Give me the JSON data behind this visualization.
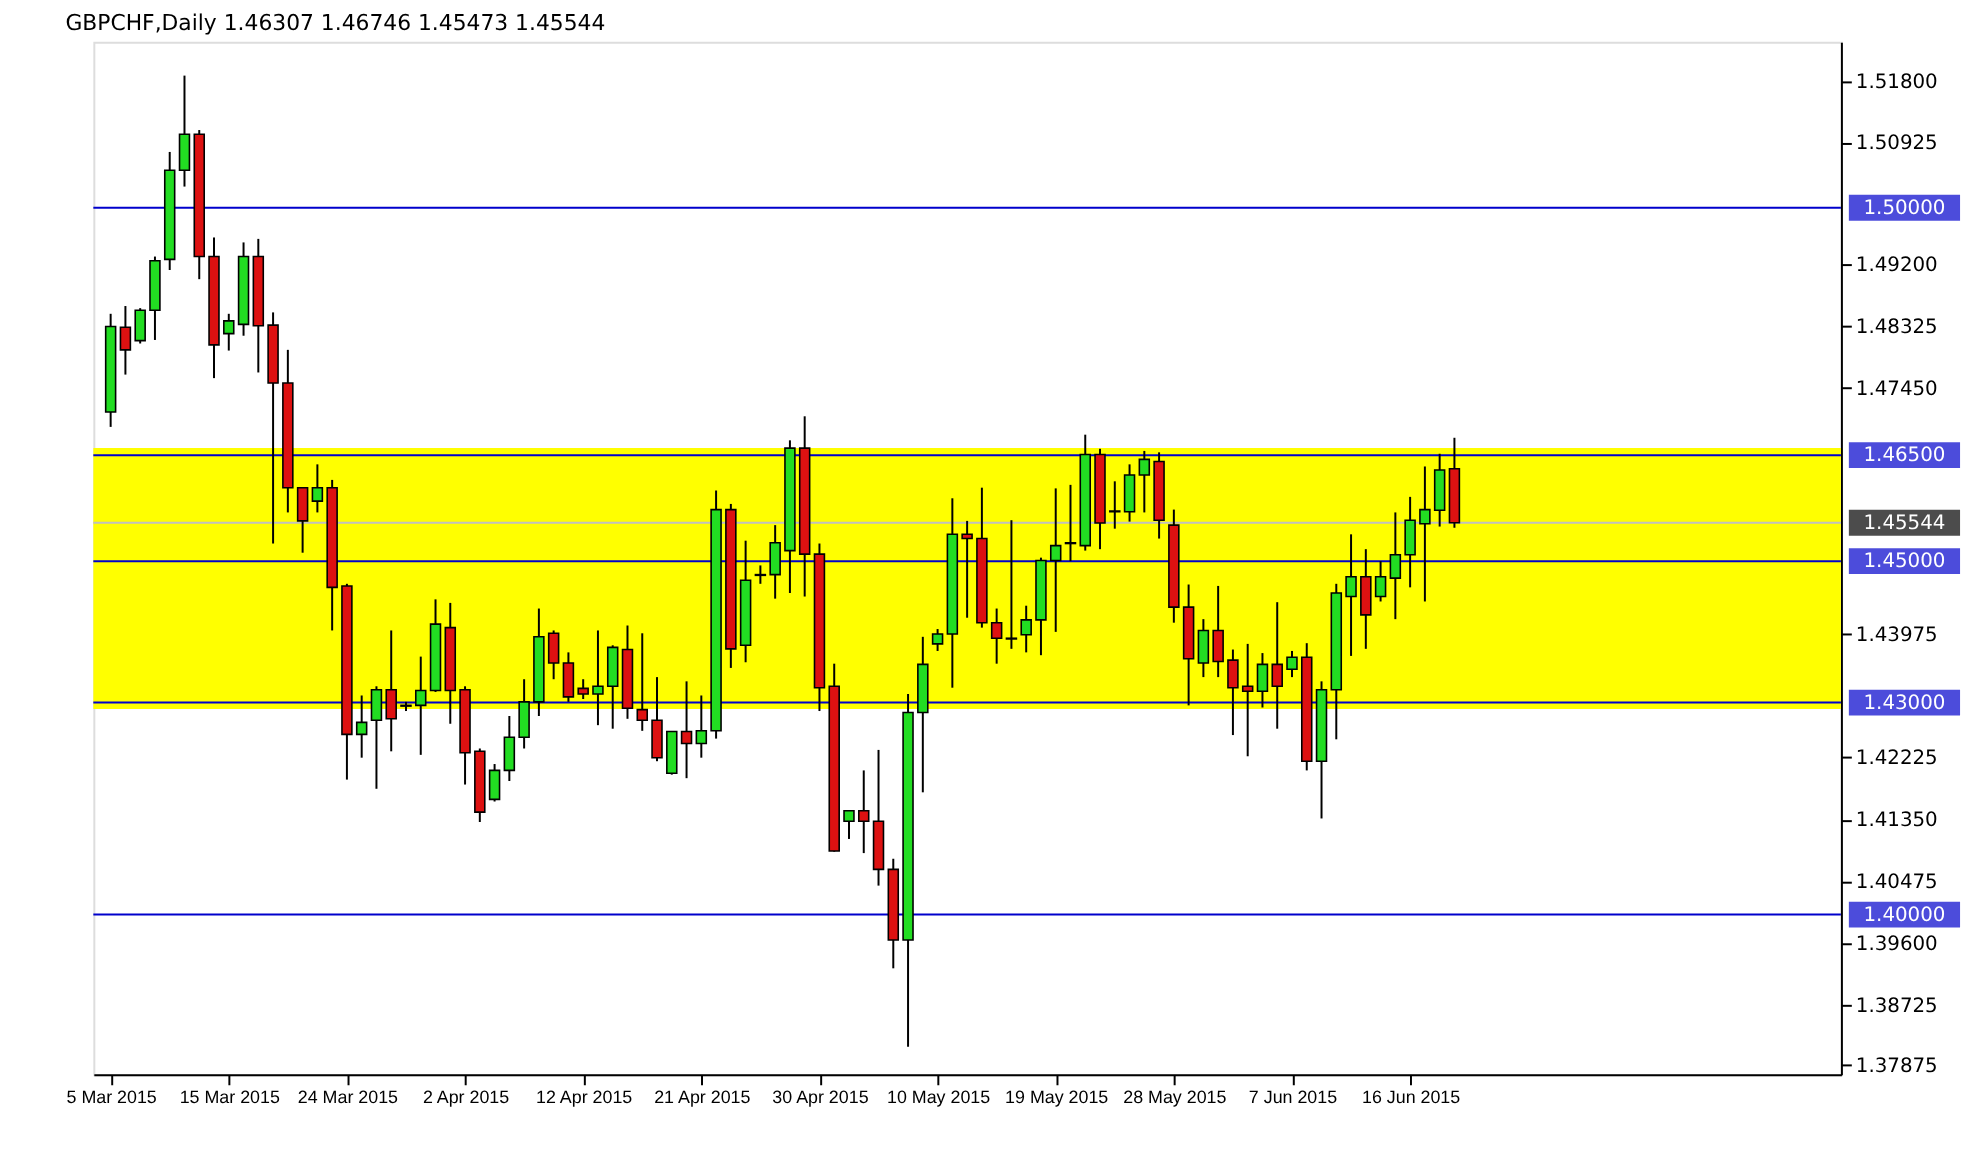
{
  "chart_data": {
    "type": "candlestick",
    "title": "GBPCHF,Daily  1.46307 1.46746 1.45473 1.45544",
    "categories": [
      "5 Mar 2015",
      null,
      null,
      null,
      null,
      null,
      null,
      null,
      "15 Mar 2015",
      null,
      null,
      null,
      null,
      null,
      null,
      null,
      "24 Mar 2015",
      null,
      null,
      null,
      null,
      null,
      null,
      null,
      "2 Apr 2015",
      null,
      null,
      null,
      null,
      null,
      null,
      null,
      "12 Apr 2015",
      null,
      null,
      null,
      null,
      null,
      null,
      null,
      "21 Apr 2015",
      null,
      null,
      null,
      null,
      null,
      null,
      null,
      "30 Apr 2015",
      null,
      null,
      null,
      null,
      null,
      null,
      null,
      "10 May 2015",
      null,
      null,
      null,
      null,
      null,
      null,
      null,
      "19 May 2015",
      null,
      null,
      null,
      null,
      null,
      null,
      null,
      "28 May 2015",
      null,
      null,
      null,
      null,
      null,
      null,
      null,
      "7 Jun 2015",
      null,
      null,
      null,
      null,
      null,
      null,
      null,
      "16 Jun 2015",
      null,
      null,
      null,
      null,
      null,
      null,
      null,
      null,
      null,
      null,
      null,
      null,
      null,
      null,
      null,
      null,
      null,
      null,
      null,
      null,
      null,
      null,
      null,
      null,
      null,
      null,
      null,
      null
    ],
    "ohlc": [
      [
        1.4711,
        1.485,
        1.469,
        1.4832
      ],
      [
        1.4831,
        1.4861,
        1.4764,
        1.4799
      ],
      [
        1.4812,
        1.4858,
        1.4808,
        1.4855
      ],
      [
        1.4855,
        1.4931,
        1.4813,
        1.4925
      ],
      [
        1.4927,
        1.5079,
        1.4912,
        1.5053
      ],
      [
        1.5053,
        1.5187,
        1.503,
        1.5104
      ],
      [
        1.5104,
        1.511,
        1.4899,
        1.4931
      ],
      [
        1.4931,
        1.4958,
        1.4759,
        1.4806
      ],
      [
        1.4822,
        1.485,
        1.4798,
        1.484
      ],
      [
        1.4835,
        1.4951,
        1.4819,
        1.4931
      ],
      [
        1.4931,
        1.4956,
        1.4767,
        1.4833
      ],
      [
        1.4834,
        1.4852,
        1.4525,
        1.4752
      ],
      [
        1.4752,
        1.4799,
        1.4569,
        1.4604
      ],
      [
        1.4604,
        1.4604,
        1.4512,
        1.4557
      ],
      [
        1.4585,
        1.4637,
        1.4569,
        1.4604
      ],
      [
        1.4604,
        1.4615,
        1.4402,
        1.4463
      ],
      [
        1.4465,
        1.4468,
        1.4191,
        1.4255
      ],
      [
        1.4255,
        1.431,
        1.4222,
        1.4272
      ],
      [
        1.4275,
        1.4323,
        1.4178,
        1.4318
      ],
      [
        1.4318,
        1.4402,
        1.4231,
        1.4277
      ],
      [
        1.4295,
        1.4301,
        1.4288,
        1.4296
      ],
      [
        1.4296,
        1.4365,
        1.4226,
        1.4317
      ],
      [
        1.4317,
        1.4446,
        1.4315,
        1.4411
      ],
      [
        1.4406,
        1.4441,
        1.427,
        1.4317
      ],
      [
        1.4318,
        1.4323,
        1.4184,
        1.4229
      ],
      [
        1.4231,
        1.4235,
        1.4131,
        1.4145
      ],
      [
        1.4163,
        1.4213,
        1.416,
        1.4204
      ],
      [
        1.4204,
        1.4281,
        1.4189,
        1.4251
      ],
      [
        1.4251,
        1.4333,
        1.4235,
        1.4301
      ],
      [
        1.4301,
        1.4433,
        1.4281,
        1.4393
      ],
      [
        1.4398,
        1.4402,
        1.4333,
        1.4356
      ],
      [
        1.4356,
        1.4371,
        1.4301,
        1.4308
      ],
      [
        1.432,
        1.4333,
        1.4305,
        1.4312
      ],
      [
        1.4312,
        1.4402,
        1.4268,
        1.4323
      ],
      [
        1.4323,
        1.4381,
        1.4263,
        1.4378
      ],
      [
        1.4375,
        1.4409,
        1.4277,
        1.4292
      ],
      [
        1.429,
        1.4398,
        1.426,
        1.4275
      ],
      [
        1.4275,
        1.4336,
        1.4217,
        1.4222
      ],
      [
        1.42,
        1.4259,
        1.4198,
        1.4259
      ],
      [
        1.4259,
        1.433,
        1.4193,
        1.4242
      ],
      [
        1.4242,
        1.431,
        1.4222,
        1.426
      ],
      [
        1.426,
        1.46,
        1.4249,
        1.4573
      ],
      [
        1.4573,
        1.4581,
        1.4349,
        1.4376
      ],
      [
        1.4381,
        1.4529,
        1.4357,
        1.4473
      ],
      [
        1.4481,
        1.4494,
        1.4468,
        1.448
      ],
      [
        1.4481,
        1.4551,
        1.4447,
        1.4526
      ],
      [
        1.4515,
        1.4671,
        1.4455,
        1.466
      ],
      [
        1.466,
        1.4705,
        1.445,
        1.451
      ],
      [
        1.451,
        1.4525,
        1.4288,
        1.4321
      ],
      [
        1.4323,
        1.4355,
        1.4089,
        1.409
      ],
      [
        1.4132,
        1.4147,
        1.4107,
        1.4147
      ],
      [
        1.4147,
        1.4204,
        1.4087,
        1.4132
      ],
      [
        1.4132,
        1.4233,
        1.4041,
        1.4064
      ],
      [
        1.4064,
        1.4079,
        1.3924,
        1.3964
      ],
      [
        1.3964,
        1.4312,
        1.3813,
        1.4286
      ],
      [
        1.4286,
        1.4393,
        1.4173,
        1.4354
      ],
      [
        1.4383,
        1.4404,
        1.4373,
        1.4397
      ],
      [
        1.4397,
        1.4589,
        1.4321,
        1.4538
      ],
      [
        1.4538,
        1.4557,
        1.442,
        1.4532
      ],
      [
        1.4532,
        1.4604,
        1.4406,
        1.4413
      ],
      [
        1.4413,
        1.4433,
        1.4355,
        1.4391
      ],
      [
        1.4391,
        1.4558,
        1.4376,
        1.439
      ],
      [
        1.4396,
        1.4437,
        1.4371,
        1.4417
      ],
      [
        1.4417,
        1.4505,
        1.4367,
        1.4501
      ],
      [
        1.4501,
        1.4603,
        1.44,
        1.4522
      ],
      [
        1.4525,
        1.4608,
        1.45,
        1.4526
      ],
      [
        1.4522,
        1.4679,
        1.4515,
        1.4651
      ],
      [
        1.4651,
        1.4659,
        1.4517,
        1.4554
      ],
      [
        1.457,
        1.4613,
        1.4546,
        1.4571
      ],
      [
        1.457,
        1.4637,
        1.4556,
        1.4622
      ],
      [
        1.4622,
        1.4656,
        1.4569,
        1.4644
      ],
      [
        1.4641,
        1.4654,
        1.4532,
        1.4558
      ],
      [
        1.4551,
        1.4573,
        1.4413,
        1.4435
      ],
      [
        1.4435,
        1.4467,
        1.4296,
        1.4362
      ],
      [
        1.4356,
        1.4418,
        1.4336,
        1.4402
      ],
      [
        1.4402,
        1.4465,
        1.4336,
        1.4358
      ],
      [
        1.436,
        1.4375,
        1.4254,
        1.4321
      ],
      [
        1.4323,
        1.4383,
        1.4224,
        1.4316
      ],
      [
        1.4316,
        1.437,
        1.4293,
        1.4354
      ],
      [
        1.4354,
        1.4442,
        1.4263,
        1.4323
      ],
      [
        1.4347,
        1.4373,
        1.4336,
        1.4364
      ],
      [
        1.4364,
        1.4384,
        1.4204,
        1.4217
      ],
      [
        1.4217,
        1.433,
        1.4136,
        1.4318
      ],
      [
        1.4318,
        1.4468,
        1.4248,
        1.4455
      ],
      [
        1.445,
        1.4538,
        1.4366,
        1.4478
      ],
      [
        1.4478,
        1.4517,
        1.4376,
        1.4424
      ],
      [
        1.445,
        1.45,
        1.4443,
        1.4478
      ],
      [
        1.4476,
        1.4569,
        1.4418,
        1.4509
      ],
      [
        1.4509,
        1.4591,
        1.4463,
        1.4558
      ],
      [
        1.4553,
        1.4634,
        1.4443,
        1.4573
      ],
      [
        1.4572,
        1.4652,
        1.4549,
        1.4629
      ],
      [
        1.46307,
        1.46746,
        1.45473,
        1.45544
      ],
      null,
      null,
      null,
      null,
      null,
      null,
      null,
      null,
      null,
      null,
      null,
      null,
      null,
      null,
      null,
      null,
      null,
      null,
      null,
      null,
      null,
      null,
      null,
      null,
      null
    ],
    "colors": [
      "#22dd22",
      "#dd1111",
      "#22dd22",
      "#22dd22",
      "#22dd22",
      "#22dd22",
      "#dd1111",
      "#dd1111",
      "#22dd22",
      "#22dd22",
      "#dd1111",
      "#dd1111",
      "#dd1111",
      "#dd1111",
      "#22dd22",
      "#dd1111",
      "#dd1111",
      "#22dd22",
      "#22dd22",
      "#dd1111",
      "#22dd22",
      "#22dd22",
      "#22dd22",
      "#dd1111",
      "#dd1111",
      "#dd1111",
      "#22dd22",
      "#22dd22",
      "#22dd22",
      "#22dd22",
      "#dd1111",
      "#dd1111",
      "#dd1111",
      "#22dd22",
      "#22dd22",
      "#dd1111",
      "#dd1111",
      "#dd1111",
      "#22dd22",
      "#dd1111",
      "#22dd22",
      "#22dd22",
      "#dd1111",
      "#22dd22",
      "#dd1111",
      "#22dd22",
      "#22dd22",
      "#dd1111",
      "#dd1111",
      "#dd1111",
      "#22dd22",
      "#dd1111",
      "#dd1111",
      "#dd1111",
      "#22dd22",
      "#22dd22",
      "#22dd22",
      "#22dd22",
      "#dd1111",
      "#dd1111",
      "#dd1111",
      "#dd1111",
      "#22dd22",
      "#22dd22",
      "#22dd22",
      "#22dd22",
      "#22dd22",
      "#dd1111",
      "#22dd22",
      "#22dd22",
      "#22dd22",
      "#dd1111",
      "#dd1111",
      "#dd1111",
      "#22dd22",
      "#dd1111",
      "#dd1111",
      "#dd1111",
      "#22dd22",
      "#dd1111",
      "#22dd22",
      "#dd1111",
      "#22dd22",
      "#22dd22",
      "#22dd22",
      "#dd1111",
      "#22dd22",
      "#22dd22",
      "#22dd22",
      "#22dd22",
      "#22dd22",
      "#dd1111",
      null,
      null,
      null,
      null,
      null,
      null,
      null,
      null,
      null,
      null,
      null,
      null,
      null,
      null,
      null,
      null,
      null,
      null,
      null,
      null,
      null,
      null,
      null,
      null,
      null
    ],
    "ylim": [
      1.3774,
      1.5235
    ],
    "yticks": [
      {
        "value": 1.518,
        "label": "1.51800"
      },
      {
        "value": 1.50925,
        "label": "1.50925"
      },
      {
        "value": 1.492,
        "label": "1.49200"
      },
      {
        "value": 1.48325,
        "label": "1.48325"
      },
      {
        "value": 1.4745,
        "label": "1.47450"
      },
      {
        "value": 1.43975,
        "label": "1.43975"
      },
      {
        "value": 1.42225,
        "label": "1.42225"
      },
      {
        "value": 1.4135,
        "label": "1.41350"
      },
      {
        "value": 1.40475,
        "label": "1.40475"
      },
      {
        "value": 1.396,
        "label": "1.39600"
      },
      {
        "value": 1.38725,
        "label": "1.38725"
      },
      {
        "value": 1.37875,
        "label": "1.37875"
      }
    ],
    "bands": [
      {
        "axis": "y",
        "from": 1.4291,
        "to": 1.466,
        "color": "#ffff00"
      }
    ],
    "ref_lines": [
      {
        "axis": "y",
        "value": 1.5,
        "label": "1.50000",
        "color": "#0000cc"
      },
      {
        "axis": "y",
        "value": 1.465,
        "label": "1.46500",
        "color": "#0000cc"
      },
      {
        "axis": "y",
        "value": 1.45544,
        "label": "1.45544",
        "color": "#c0c0c0"
      },
      {
        "axis": "y",
        "value": 1.45,
        "label": "1.45000",
        "color": "#0000cc"
      },
      {
        "axis": "y",
        "value": 1.43,
        "label": "1.43000",
        "color": "#0000cc"
      },
      {
        "axis": "y",
        "value": 1.4,
        "label": "1.40000",
        "color": "#0000cc"
      }
    ],
    "grid": false
  }
}
